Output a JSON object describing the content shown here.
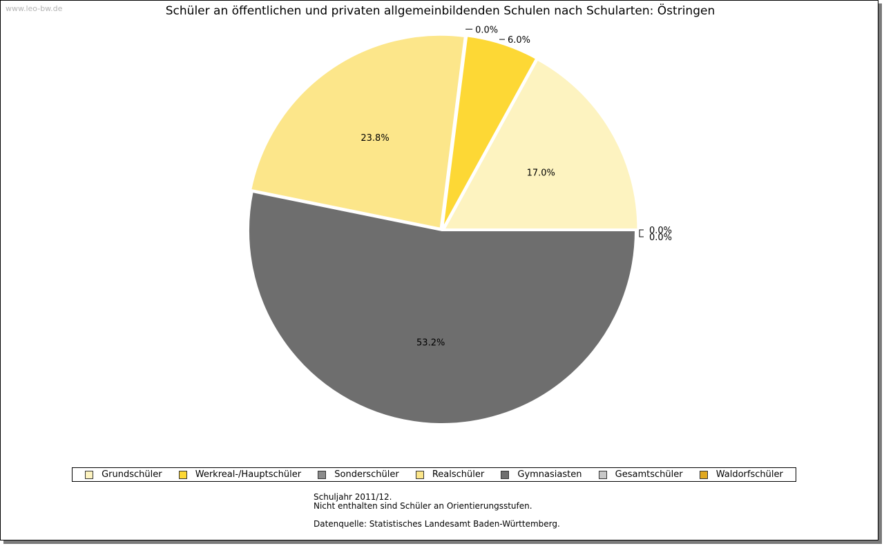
{
  "watermark": "www.leo-bw.de",
  "chart_data": {
    "type": "pie",
    "title": "Schüler an öffentlichen und privaten allgemeinbildenden Schulen nach Schularten: Östringen",
    "categories": [
      "Grundschüler",
      "Werkreal-/Hauptschüler",
      "Sonderschüler",
      "Realschüler",
      "Gymnasiasten",
      "Gesamtschüler",
      "Waldorfschüler"
    ],
    "values": [
      17.0,
      6.0,
      0.0,
      23.8,
      53.2,
      0.0,
      0.0
    ],
    "labels": [
      "17.0%",
      "6.0%",
      "0.0%",
      "23.8%",
      "53.2%",
      "0.0%",
      "0.0%"
    ],
    "colors": [
      "#fdf3c0",
      "#fdd835",
      "#8c8c8c",
      "#fce68a",
      "#6e6e6e",
      "#c8c8c8",
      "#e0a820"
    ],
    "legend_position": "bottom"
  },
  "notes": {
    "line1": "Schuljahr 2011/12.",
    "line2": "Nicht enthalten sind Schüler an Orientierungsstufen.",
    "line3": "Datenquelle: Statistisches Landesamt Baden-Württemberg."
  }
}
